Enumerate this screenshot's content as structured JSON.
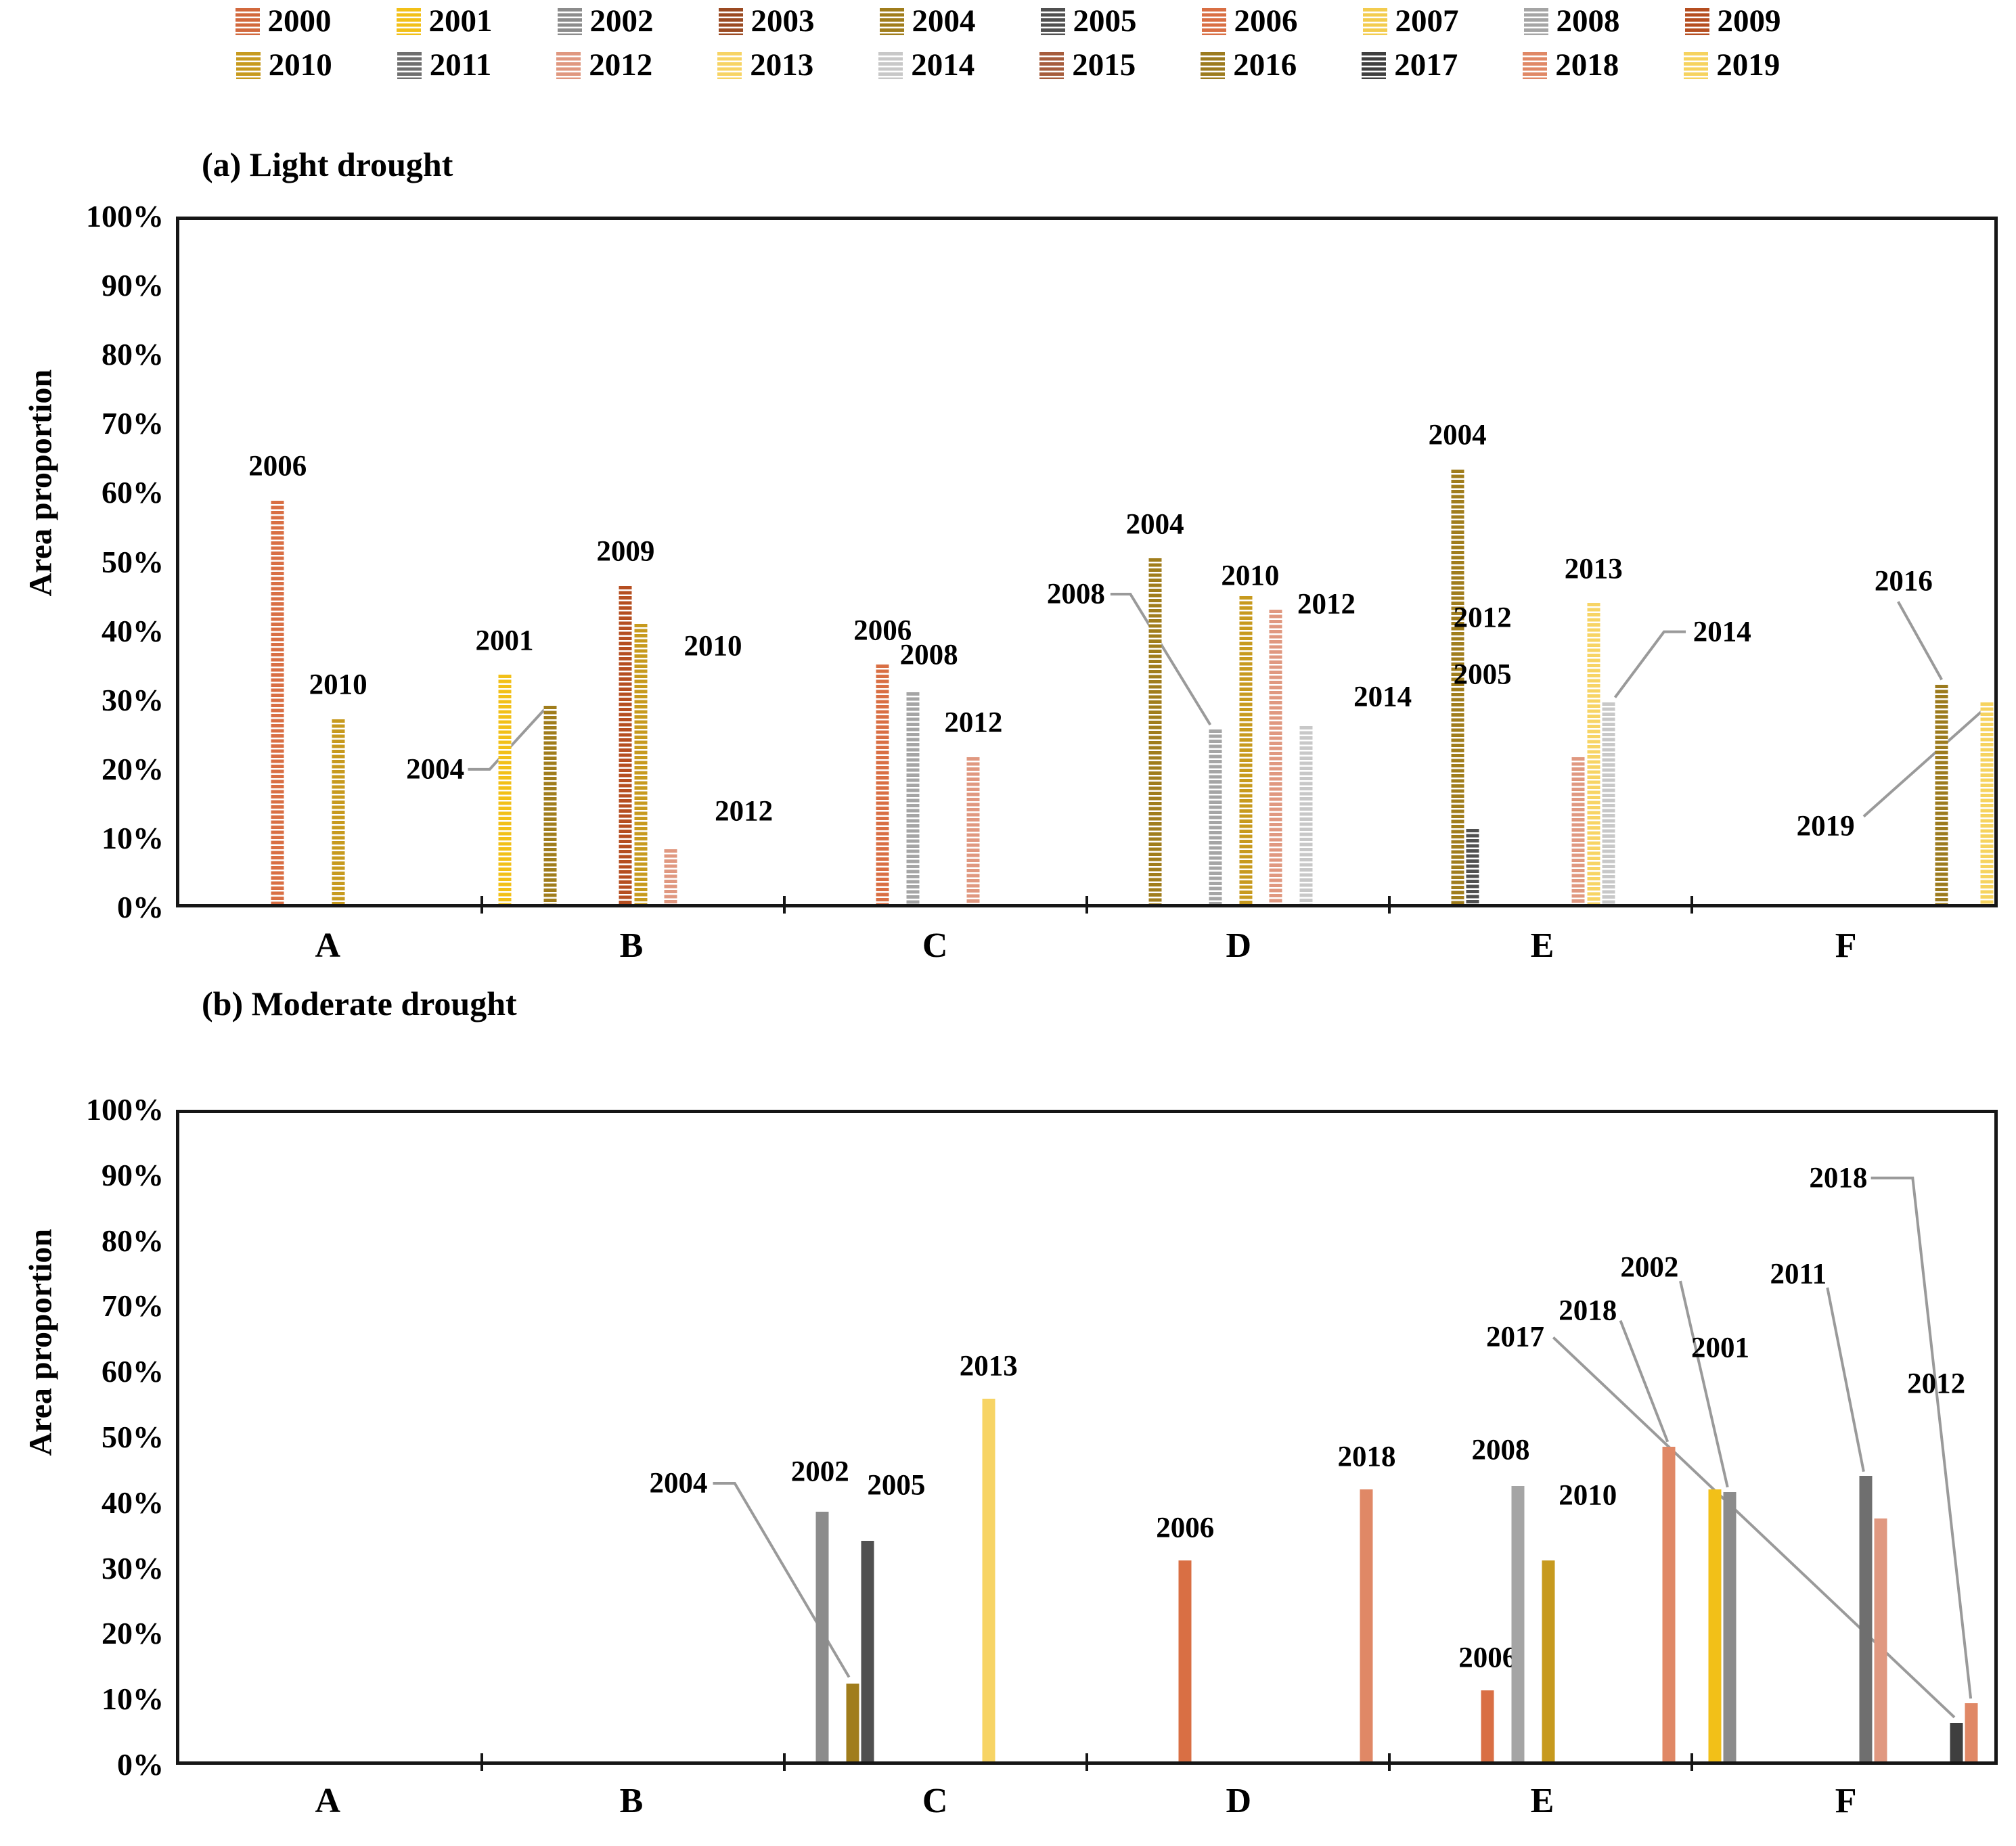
{
  "legend": {
    "years": [
      "2000",
      "2001",
      "2002",
      "2003",
      "2004",
      "2005",
      "2006",
      "2007",
      "2008",
      "2009",
      "2010",
      "2011",
      "2012",
      "2013",
      "2014",
      "2015",
      "2016",
      "2017",
      "2018",
      "2019"
    ]
  },
  "colors": {
    "2000": "#D2693E",
    "2001": "#F2C018",
    "2002": "#8C8C8C",
    "2003": "#9B4A22",
    "2004": "#A07D1C",
    "2005": "#505050",
    "2006": "#D96F44",
    "2007": "#F3CC4F",
    "2008": "#A5A5A5",
    "2009": "#B54E20",
    "2010": "#C79A1E",
    "2011": "#6F6F6F",
    "2012": "#E09880",
    "2013": "#F7D465",
    "2014": "#C8C8C8",
    "2015": "#A65C3C",
    "2016": "#9C7B1E",
    "2017": "#3F3F3F",
    "2018": "#E08866",
    "2019": "#F6D35F"
  },
  "chart_data": [
    {
      "id": "a",
      "type": "bar",
      "title": "(a) Light drought",
      "ylabel": "Area proportion",
      "xlabel": "",
      "ylim": [
        0,
        100
      ],
      "grid": false,
      "legend_position": "top",
      "bar_style": "striped",
      "y_tick_labels": [
        "100%",
        "90%",
        "80%",
        "70%",
        "60%",
        "50%",
        "40%",
        "30%",
        "20%",
        "10%",
        "0%"
      ],
      "categories": [
        "A",
        "B",
        "C",
        "D",
        "E",
        "F"
      ],
      "points": [
        {
          "category": "A",
          "year": "2006",
          "value": 59
        },
        {
          "category": "A",
          "year": "2010",
          "value": 27
        },
        {
          "category": "B",
          "year": "2001",
          "value": 33.5
        },
        {
          "category": "B",
          "year": "2004",
          "value": 29
        },
        {
          "category": "B",
          "year": "2009",
          "value": 46.5
        },
        {
          "category": "B",
          "year": "2010",
          "value": 41
        },
        {
          "category": "B",
          "year": "2012",
          "value": 8
        },
        {
          "category": "C",
          "year": "2006",
          "value": 35
        },
        {
          "category": "C",
          "year": "2008",
          "value": 31
        },
        {
          "category": "C",
          "year": "2012",
          "value": 21.5
        },
        {
          "category": "D",
          "year": "2004",
          "value": 50.5
        },
        {
          "category": "D",
          "year": "2008",
          "value": 25.5
        },
        {
          "category": "D",
          "year": "2010",
          "value": 45
        },
        {
          "category": "D",
          "year": "2012",
          "value": 43
        },
        {
          "category": "D",
          "year": "2014",
          "value": 26
        },
        {
          "category": "E",
          "year": "2004",
          "value": 63.5
        },
        {
          "category": "E",
          "year": "2005",
          "value": 11
        },
        {
          "category": "E",
          "year": "2012",
          "value": 21.5
        },
        {
          "category": "E",
          "year": "2013",
          "value": 44
        },
        {
          "category": "E",
          "year": "2014",
          "value": 29.5
        },
        {
          "category": "F",
          "year": "2016",
          "value": 32
        },
        {
          "category": "F",
          "year": "2019",
          "value": 29.5
        }
      ]
    },
    {
      "id": "b",
      "type": "bar",
      "title": "(b) Moderate drought",
      "ylabel": "Area proportion",
      "xlabel": "",
      "ylim": [
        0,
        100
      ],
      "grid": false,
      "legend_position": "top",
      "bar_style": "solid",
      "y_tick_labels": [
        "100%",
        "90%",
        "80%",
        "70%",
        "60%",
        "50%",
        "40%",
        "30%",
        "20%",
        "10%",
        "0%"
      ],
      "categories": [
        "A",
        "B",
        "C",
        "D",
        "E",
        "F"
      ],
      "points": [
        {
          "category": "C",
          "year": "2002",
          "value": 38.5
        },
        {
          "category": "C",
          "year": "2004",
          "value": 12
        },
        {
          "category": "C",
          "year": "2005",
          "value": 34
        },
        {
          "category": "C",
          "year": "2013",
          "value": 56
        },
        {
          "category": "D",
          "year": "2006",
          "value": 31
        },
        {
          "category": "D",
          "year": "2018",
          "value": 42
        },
        {
          "category": "E",
          "year": "2006",
          "value": 11
        },
        {
          "category": "E",
          "year": "2008",
          "value": 42.5
        },
        {
          "category": "E",
          "year": "2010",
          "value": 31
        },
        {
          "category": "E",
          "year": "2018",
          "value": 48.5
        },
        {
          "category": "F",
          "year": "2001",
          "value": 42
        },
        {
          "category": "F",
          "year": "2002",
          "value": 41.5
        },
        {
          "category": "F",
          "year": "2011",
          "value": 44
        },
        {
          "category": "F",
          "year": "2012",
          "value": 37.5
        },
        {
          "category": "F",
          "year": "2017",
          "value": 6
        },
        {
          "category": "F",
          "year": "2018",
          "value": 9
        }
      ]
    }
  ]
}
